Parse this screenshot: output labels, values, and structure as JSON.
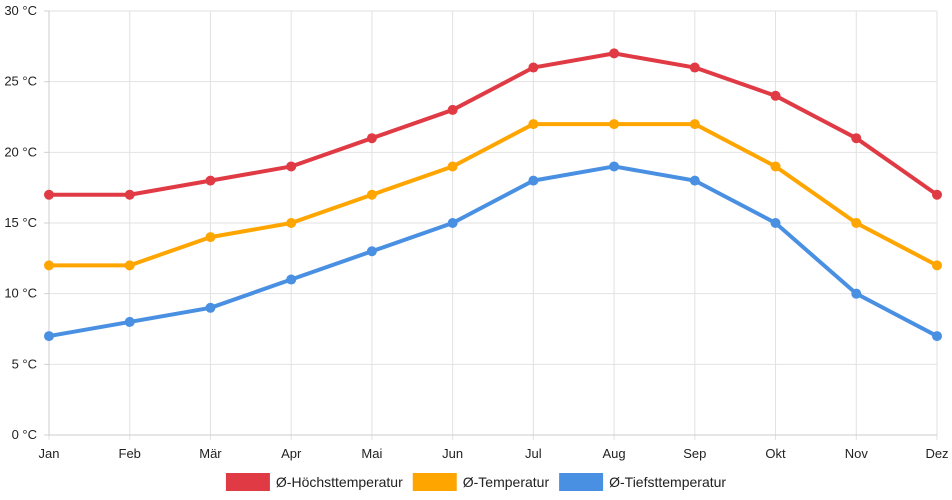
{
  "chart_data": {
    "type": "line",
    "title": "",
    "xlabel": "",
    "ylabel": "",
    "categories": [
      "Jan",
      "Feb",
      "Mär",
      "Apr",
      "Mai",
      "Jun",
      "Jul",
      "Aug",
      "Sep",
      "Okt",
      "Nov",
      "Dez"
    ],
    "ylim": [
      0,
      30
    ],
    "yticks": [
      0,
      5,
      10,
      15,
      20,
      25,
      30
    ],
    "ytick_labels": [
      "0 °C",
      "5 °C",
      "10 °C",
      "15 °C",
      "20 °C",
      "25 °C",
      "30 °C"
    ],
    "grid": true,
    "legend_position": "bottom-center",
    "series": [
      {
        "name": "Ø-Höchsttemperatur",
        "color": "#e03a45",
        "values": [
          17,
          17,
          18,
          19,
          21,
          23,
          26,
          27,
          26,
          24,
          21,
          17
        ]
      },
      {
        "name": "Ø-Temperatur",
        "color": "#ffa500",
        "values": [
          12,
          12,
          14,
          15,
          17,
          19,
          22,
          22,
          22,
          19,
          15,
          12
        ]
      },
      {
        "name": "Ø-Tiefsttemperatur",
        "color": "#4a90e2",
        "values": [
          7,
          8,
          9,
          11,
          13,
          15,
          18,
          19,
          18,
          15,
          10,
          7
        ]
      }
    ]
  }
}
